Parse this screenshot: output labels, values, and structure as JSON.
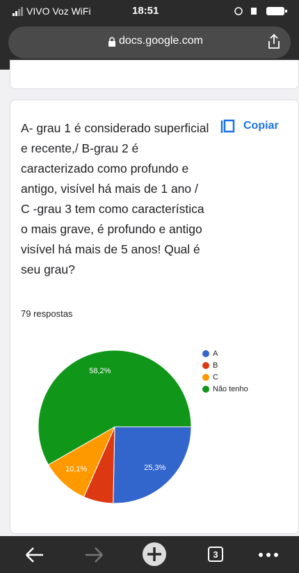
{
  "status_bar": {
    "carrier": "VIVO Voz WiFi",
    "time": "18:51"
  },
  "address_bar": {
    "url": "docs.google.com"
  },
  "question": {
    "text": "A- grau 1 é considerado superficial e recente,/ B-grau 2 é caracterizado como profundo e antigo, visível há mais de 1 ano / C -grau 3 tem como característica o mais grave, é profundo e antigo visível há mais de 5 anos! Qual é seu grau?",
    "copy_button": "Copiar",
    "responses": "79 respostas"
  },
  "chart_data": {
    "type": "pie",
    "categories": [
      "A",
      "B",
      "C",
      "Não tenho"
    ],
    "values": [
      25.3,
      6.3,
      10.1,
      58.2
    ],
    "value_labels": [
      "25,3%",
      null,
      "10,1%",
      "58,2%"
    ],
    "colors": [
      "#3366cc",
      "#dc3912",
      "#ff9900",
      "#109618"
    ],
    "legend": "right"
  },
  "toolbar": {
    "tab_count": "3"
  }
}
